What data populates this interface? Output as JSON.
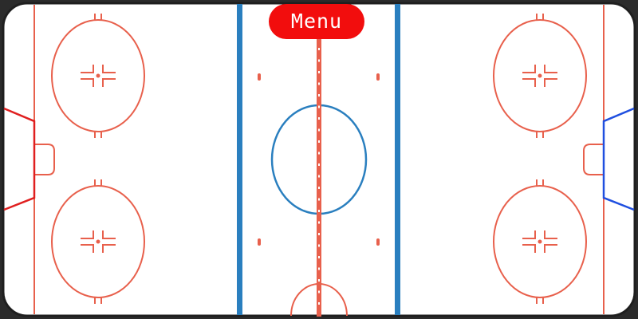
{
  "menu_button": {
    "label": "Menu"
  },
  "colors": {
    "ice": "#ffffff",
    "board": "#1f1f1f",
    "red_line": "#e8604c",
    "blue_line": "#2a7fbf",
    "left_goal": "#e01f1f",
    "right_goal": "#1f4fe0",
    "menu_button_bg": "#f20d0d",
    "menu_button_text": "#ffffff"
  },
  "icons": {
    "faceoff_marker": "faceoff-crosshair-icon",
    "goal_net": "goal-net-icon"
  }
}
